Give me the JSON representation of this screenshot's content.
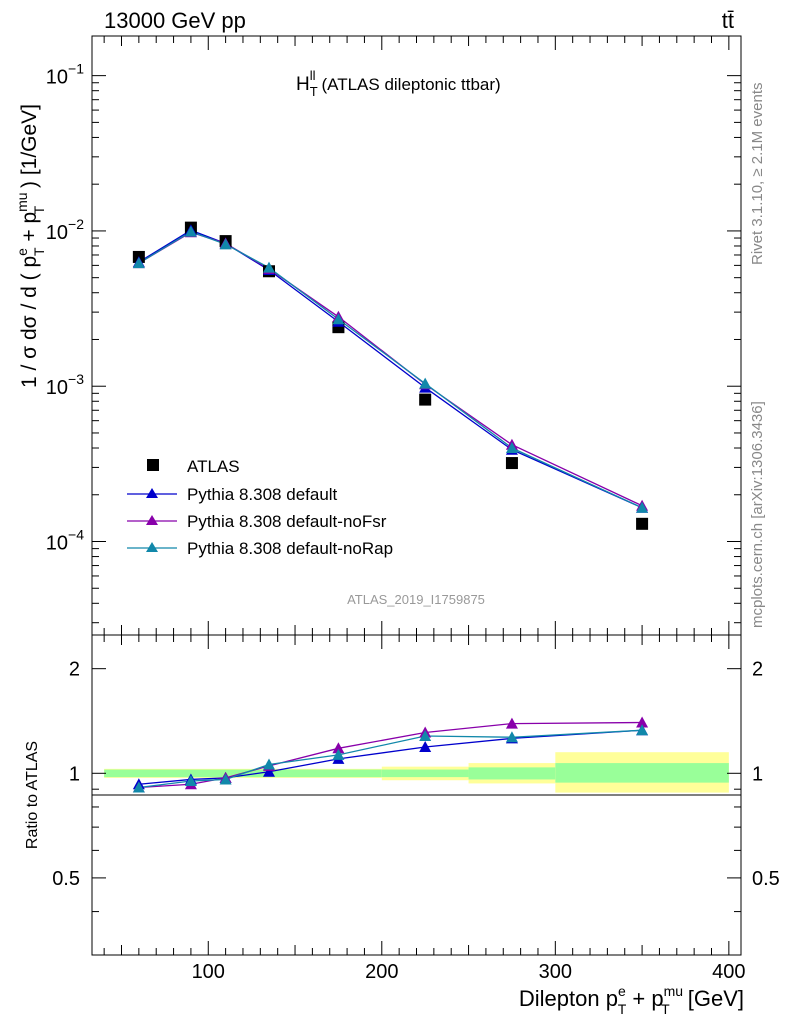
{
  "header": {
    "left": "13000 GeV pp",
    "right": "tt̄"
  },
  "side_labels": {
    "rivet": "Rivet 3.1.10, ≥ 2.1M events",
    "mcplots": "mcplots.cern.ch [arXiv:1306.3436]"
  },
  "analysis_id": "ATLAS_2019_I1759875",
  "colors": {
    "data": "#000000",
    "default": "#0000cc",
    "noFsr": "#8800aa",
    "noRap": "#1188aa",
    "band_inner": "#99ff99",
    "band_outer": "#ffff99"
  },
  "chart_data": [
    {
      "type": "scatter",
      "panel": "main",
      "title": "(ATLAS dileptonic ttbar)",
      "title_symbol": {
        "base": "H",
        "sub": "T",
        "sup": "ll"
      },
      "ylabel": {
        "lead": "1 / σ  dσ / d ( p",
        "sup1": "e",
        "sub1": "T",
        "mid": " + p",
        "sup2": "mu",
        "sub2": "T",
        "tail": " ) [1/GeV]"
      },
      "yscale": "log",
      "ylim": [
        2.5e-05,
        0.18
      ],
      "xlim": [
        33,
        407
      ],
      "yticks": [
        {
          "value": 0.1,
          "base": "10",
          "exp": "−1"
        },
        {
          "value": 0.01,
          "base": "10",
          "exp": "−2"
        },
        {
          "value": 0.001,
          "base": "10",
          "exp": "−3"
        },
        {
          "value": 0.0001,
          "base": "10",
          "exp": "−4"
        }
      ],
      "legend_position": "bottom-left",
      "x": [
        60,
        90,
        110,
        135,
        175,
        225,
        275,
        350
      ],
      "series": [
        {
          "name": "ATLAS",
          "key": "data",
          "marker": "square",
          "values": [
            0.0068,
            0.0105,
            0.0086,
            0.0055,
            0.0024,
            0.00082,
            0.00032,
            0.00013
          ]
        },
        {
          "name": "Pythia 8.308 default",
          "key": "default",
          "marker": "triangle",
          "values": [
            0.0063,
            0.0101,
            0.0083,
            0.0056,
            0.0026,
            0.00098,
            0.00039,
            0.000165
          ]
        },
        {
          "name": "Pythia 8.308 default-noFsr",
          "key": "noFsr",
          "marker": "triangle",
          "values": [
            0.0062,
            0.0098,
            0.0083,
            0.0057,
            0.0028,
            0.00103,
            0.00042,
            0.00017
          ]
        },
        {
          "name": "Pythia 8.308 default-noRap",
          "key": "noRap",
          "marker": "triangle",
          "values": [
            0.0062,
            0.0099,
            0.0082,
            0.0058,
            0.0027,
            0.00104,
            0.0004,
            0.000165
          ]
        }
      ]
    },
    {
      "type": "line",
      "panel": "ratio",
      "ylabel": "Ratio to ATLAS",
      "xlabel": {
        "lead": "Dilepton p",
        "sup1": "e",
        "sub1": "T",
        "mid": " + p",
        "sup2": "mu",
        "sub2": "T",
        "tail": " [GeV]"
      },
      "xlim": [
        33,
        407
      ],
      "ylim": [
        0.3,
        2.5
      ],
      "yscale": "log",
      "xticks": [
        100,
        200,
        300,
        400
      ],
      "yticks": [
        0.5,
        1,
        2
      ],
      "x": [
        60,
        90,
        110,
        135,
        175,
        225,
        275,
        350
      ],
      "series": [
        {
          "name": "Pythia 8.308 default",
          "key": "default",
          "values": [
            0.93,
            0.96,
            0.97,
            1.01,
            1.1,
            1.19,
            1.26,
            1.33
          ]
        },
        {
          "name": "Pythia 8.308 default-noFsr",
          "key": "noFsr",
          "values": [
            0.91,
            0.93,
            0.97,
            1.05,
            1.18,
            1.31,
            1.39,
            1.4
          ]
        },
        {
          "name": "Pythia 8.308 default-noRap",
          "key": "noRap",
          "values": [
            0.91,
            0.95,
            0.96,
            1.06,
            1.13,
            1.28,
            1.27,
            1.33
          ]
        }
      ],
      "bands": [
        {
          "x_range": [
            40,
            200
          ],
          "inner": [
            0.975,
            1.025
          ],
          "outer": [
            0.97,
            1.03
          ]
        },
        {
          "x_range": [
            200,
            250
          ],
          "inner": [
            0.975,
            1.025
          ],
          "outer": [
            0.955,
            1.045
          ]
        },
        {
          "x_range": [
            250,
            300
          ],
          "inner": [
            0.96,
            1.04
          ],
          "outer": [
            0.935,
            1.07
          ]
        },
        {
          "x_range": [
            300,
            400
          ],
          "inner": [
            0.94,
            1.07
          ],
          "outer": [
            0.88,
            1.15
          ]
        }
      ]
    }
  ]
}
